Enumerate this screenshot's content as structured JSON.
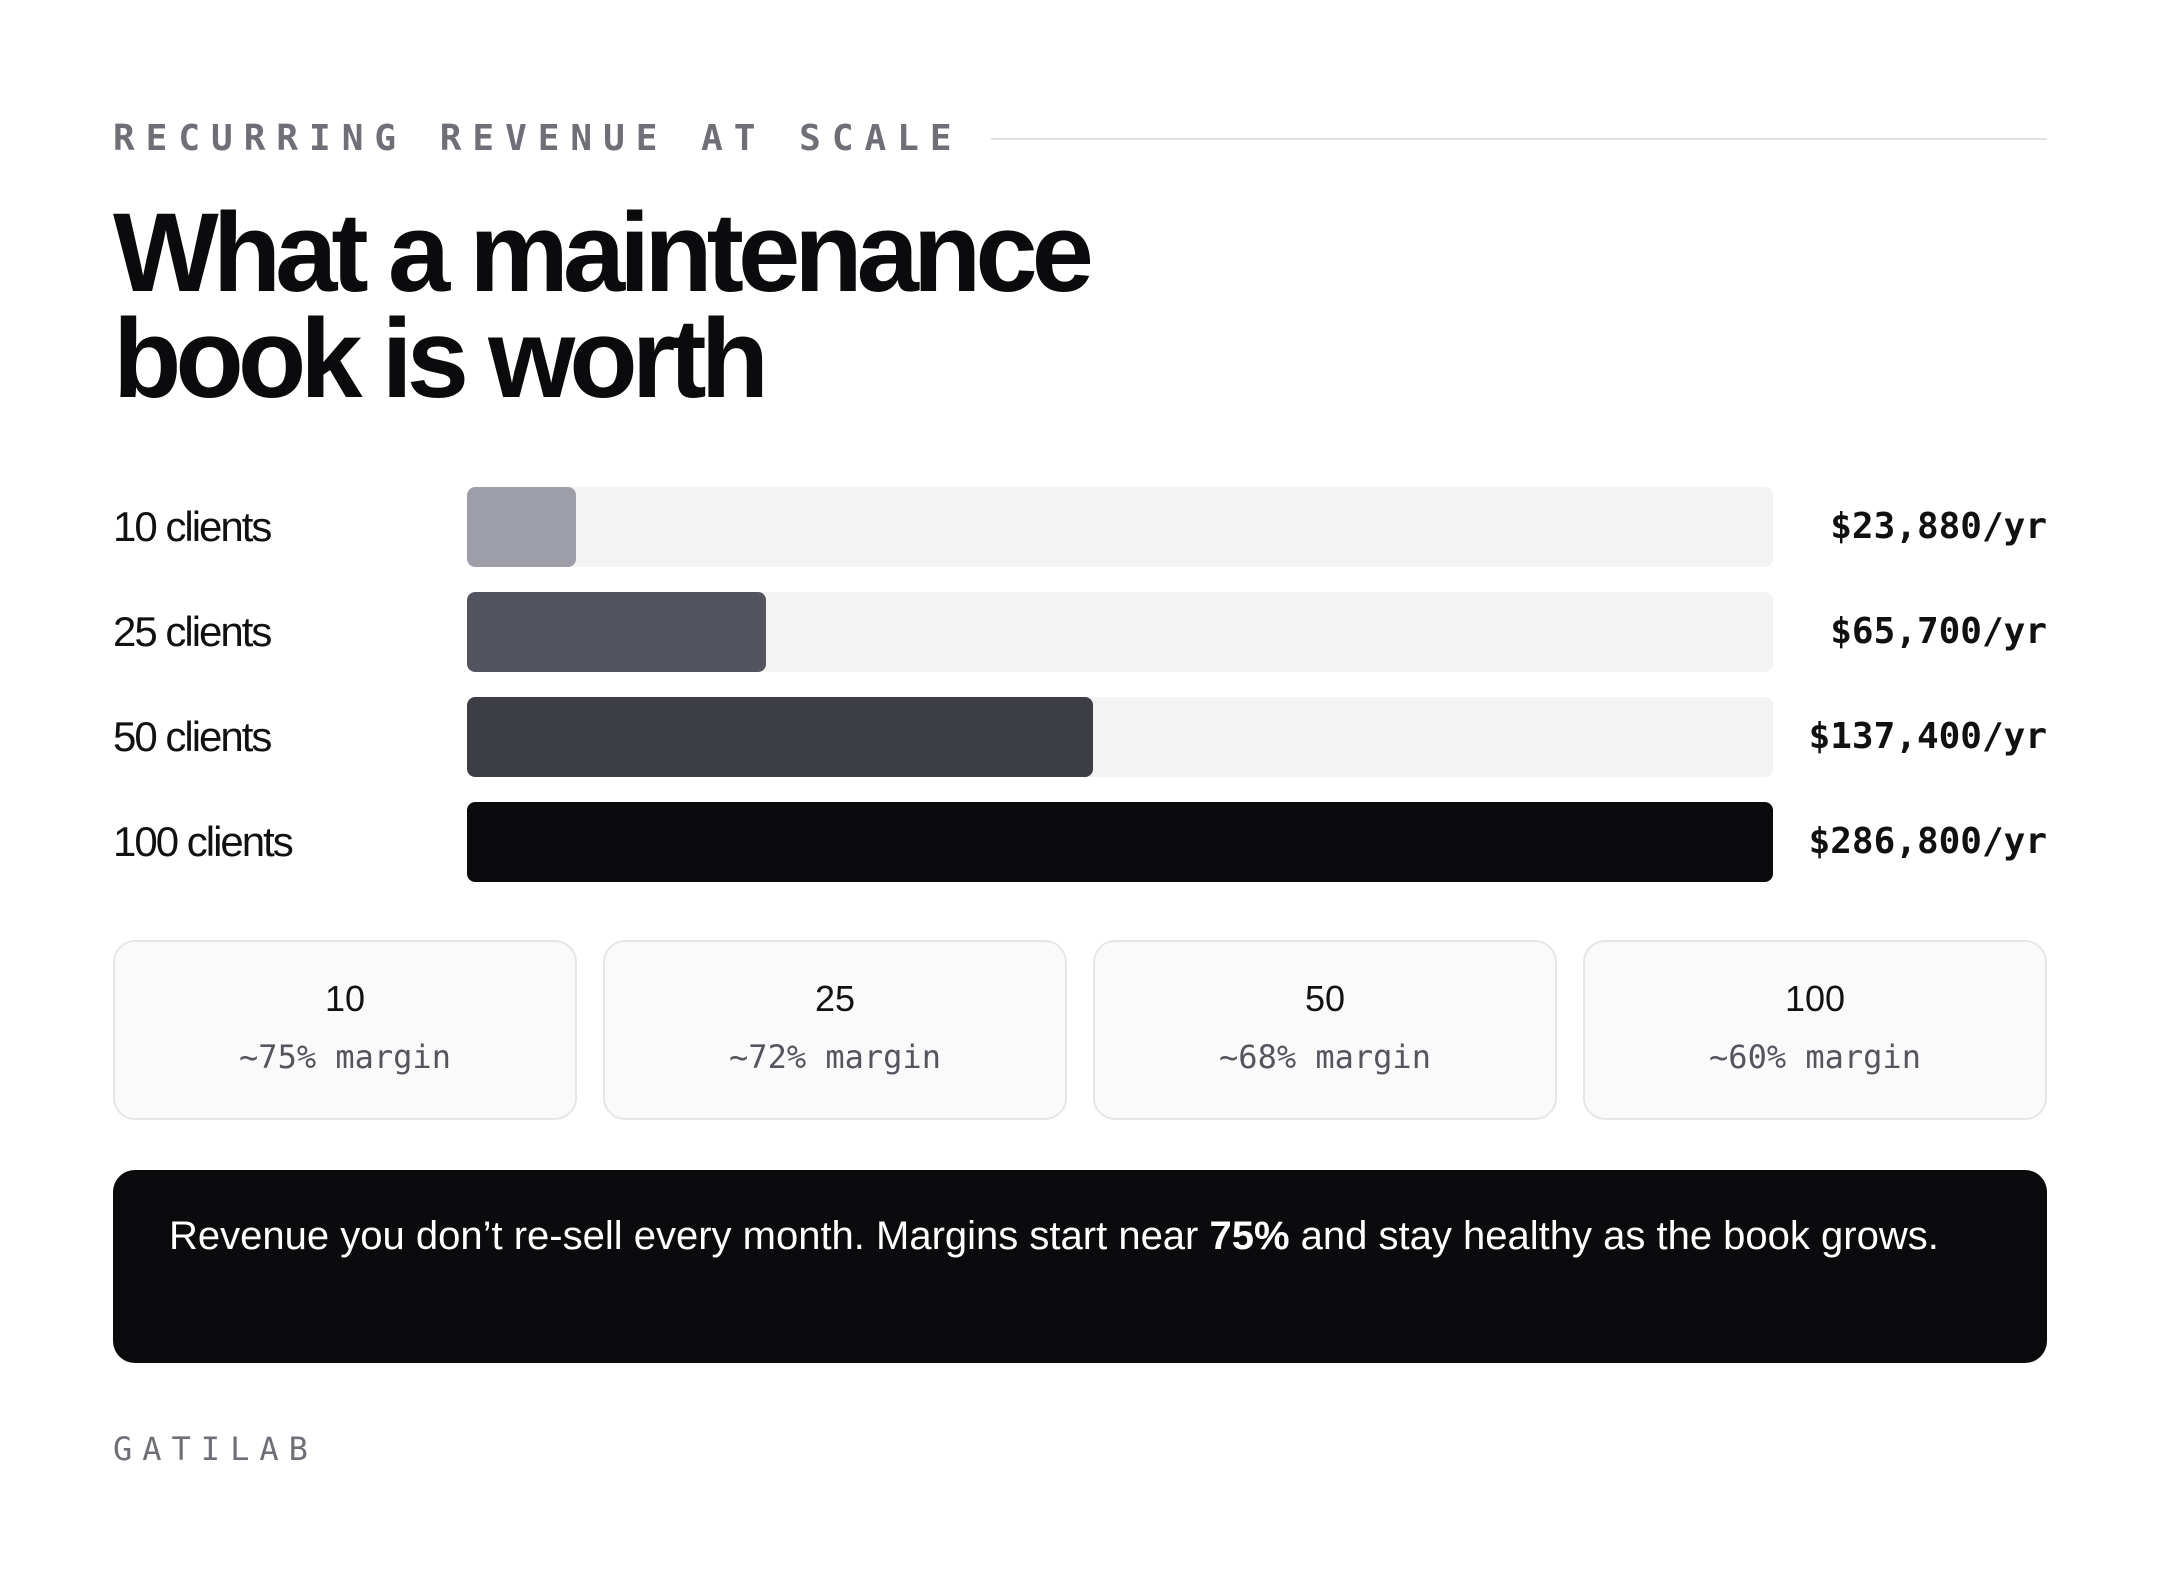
{
  "eyebrow": "RECURRING REVENUE AT SCALE",
  "title_line1": "What a maintenance",
  "title_line2": "book is worth",
  "chart_data": {
    "type": "bar",
    "orientation": "horizontal",
    "title": "What a maintenance book is worth",
    "categories": [
      "10 clients",
      "25 clients",
      "50 clients",
      "100 clients"
    ],
    "values": [
      23880,
      65700,
      137400,
      286800
    ],
    "value_labels": [
      "$23,880/yr",
      "$65,700/yr",
      "$137,400/yr",
      "$286,800/yr"
    ],
    "unit": "$/yr",
    "xlim": [
      0,
      286800
    ],
    "bar_colors": [
      "#9e9ea8",
      "#54545e",
      "#3d3d45",
      "#0b0b0d"
    ],
    "track_color": "#f3f3f3",
    "grid": false,
    "legend": "none"
  },
  "margin_cards": [
    {
      "count": "10",
      "margin": "~75% margin"
    },
    {
      "count": "25",
      "margin": "~72% margin"
    },
    {
      "count": "50",
      "margin": "~68% margin"
    },
    {
      "count": "100",
      "margin": "~60% margin"
    }
  ],
  "callout": {
    "text_before": "Revenue you don’t re-sell every month. Margins start near ",
    "text_bold": "75%",
    "text_after": " and stay healthy as the book grows."
  },
  "brand": "GATILAB"
}
